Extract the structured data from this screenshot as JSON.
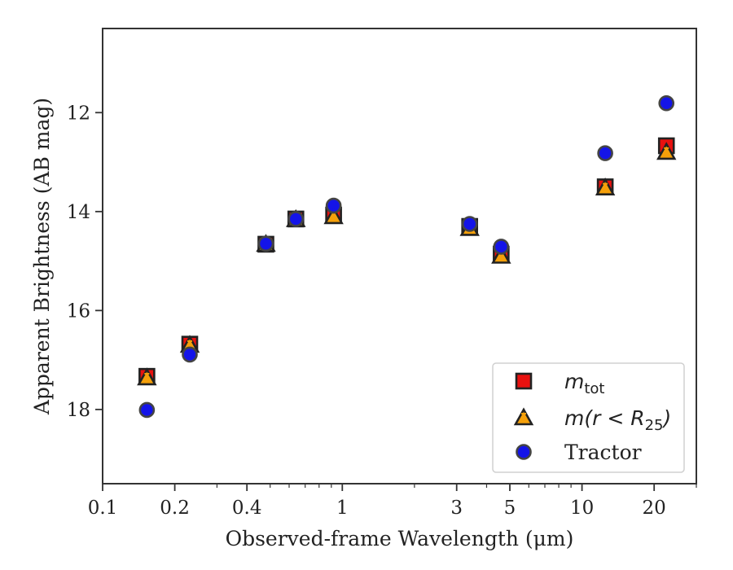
{
  "chart_data": {
    "type": "scatter",
    "xlabel": "Observed-frame Wavelength (μm)",
    "ylabel": "Apparent Brightness (AB mag)",
    "xscale": "log",
    "xlim": [
      0.1,
      30
    ],
    "ylim": [
      19.5,
      10.3
    ],
    "y_inverted": true,
    "xticks": [
      0.1,
      0.2,
      0.4,
      1,
      3,
      5,
      10,
      20
    ],
    "xtick_labels": [
      "0.1",
      "0.2",
      "0.4",
      "1",
      "3",
      "5",
      "10",
      "20"
    ],
    "yticks": [
      12,
      14,
      16,
      18
    ],
    "ytick_labels": [
      "12",
      "14",
      "16",
      "18"
    ],
    "grid": false,
    "legend_position": "bottom-right",
    "series": [
      {
        "name": "m_tot",
        "legend_label": "m",
        "legend_sub": "tot",
        "marker": "square",
        "color": "#e8110f",
        "edge_color": "#222222",
        "x": [
          0.153,
          0.231,
          0.48,
          0.64,
          0.92,
          3.4,
          4.6,
          12.5,
          22.5
        ],
        "y": [
          17.33,
          16.68,
          14.66,
          14.15,
          14.07,
          14.3,
          14.86,
          13.5,
          12.67
        ]
      },
      {
        "name": "m(r < R25)",
        "legend_label": "m(r < R",
        "legend_sub": "25",
        "legend_suffix": ")",
        "marker": "triangle",
        "color": "#f5a00a",
        "edge_color": "#222222",
        "x": [
          0.153,
          0.231,
          0.48,
          0.64,
          0.92,
          3.4,
          4.6,
          12.5,
          22.5
        ],
        "y": [
          17.36,
          16.7,
          14.66,
          14.16,
          14.1,
          14.34,
          14.9,
          13.52,
          12.8
        ]
      },
      {
        "name": "Tractor",
        "legend_label": "Tractor",
        "marker": "circle",
        "color": "#1414e8",
        "edge_color": "#444444",
        "x": [
          0.153,
          0.231,
          0.48,
          0.64,
          0.92,
          3.4,
          4.6,
          12.5,
          22.5
        ],
        "y": [
          18.01,
          16.89,
          14.65,
          14.15,
          13.88,
          14.25,
          14.71,
          12.82,
          11.81
        ]
      }
    ]
  }
}
